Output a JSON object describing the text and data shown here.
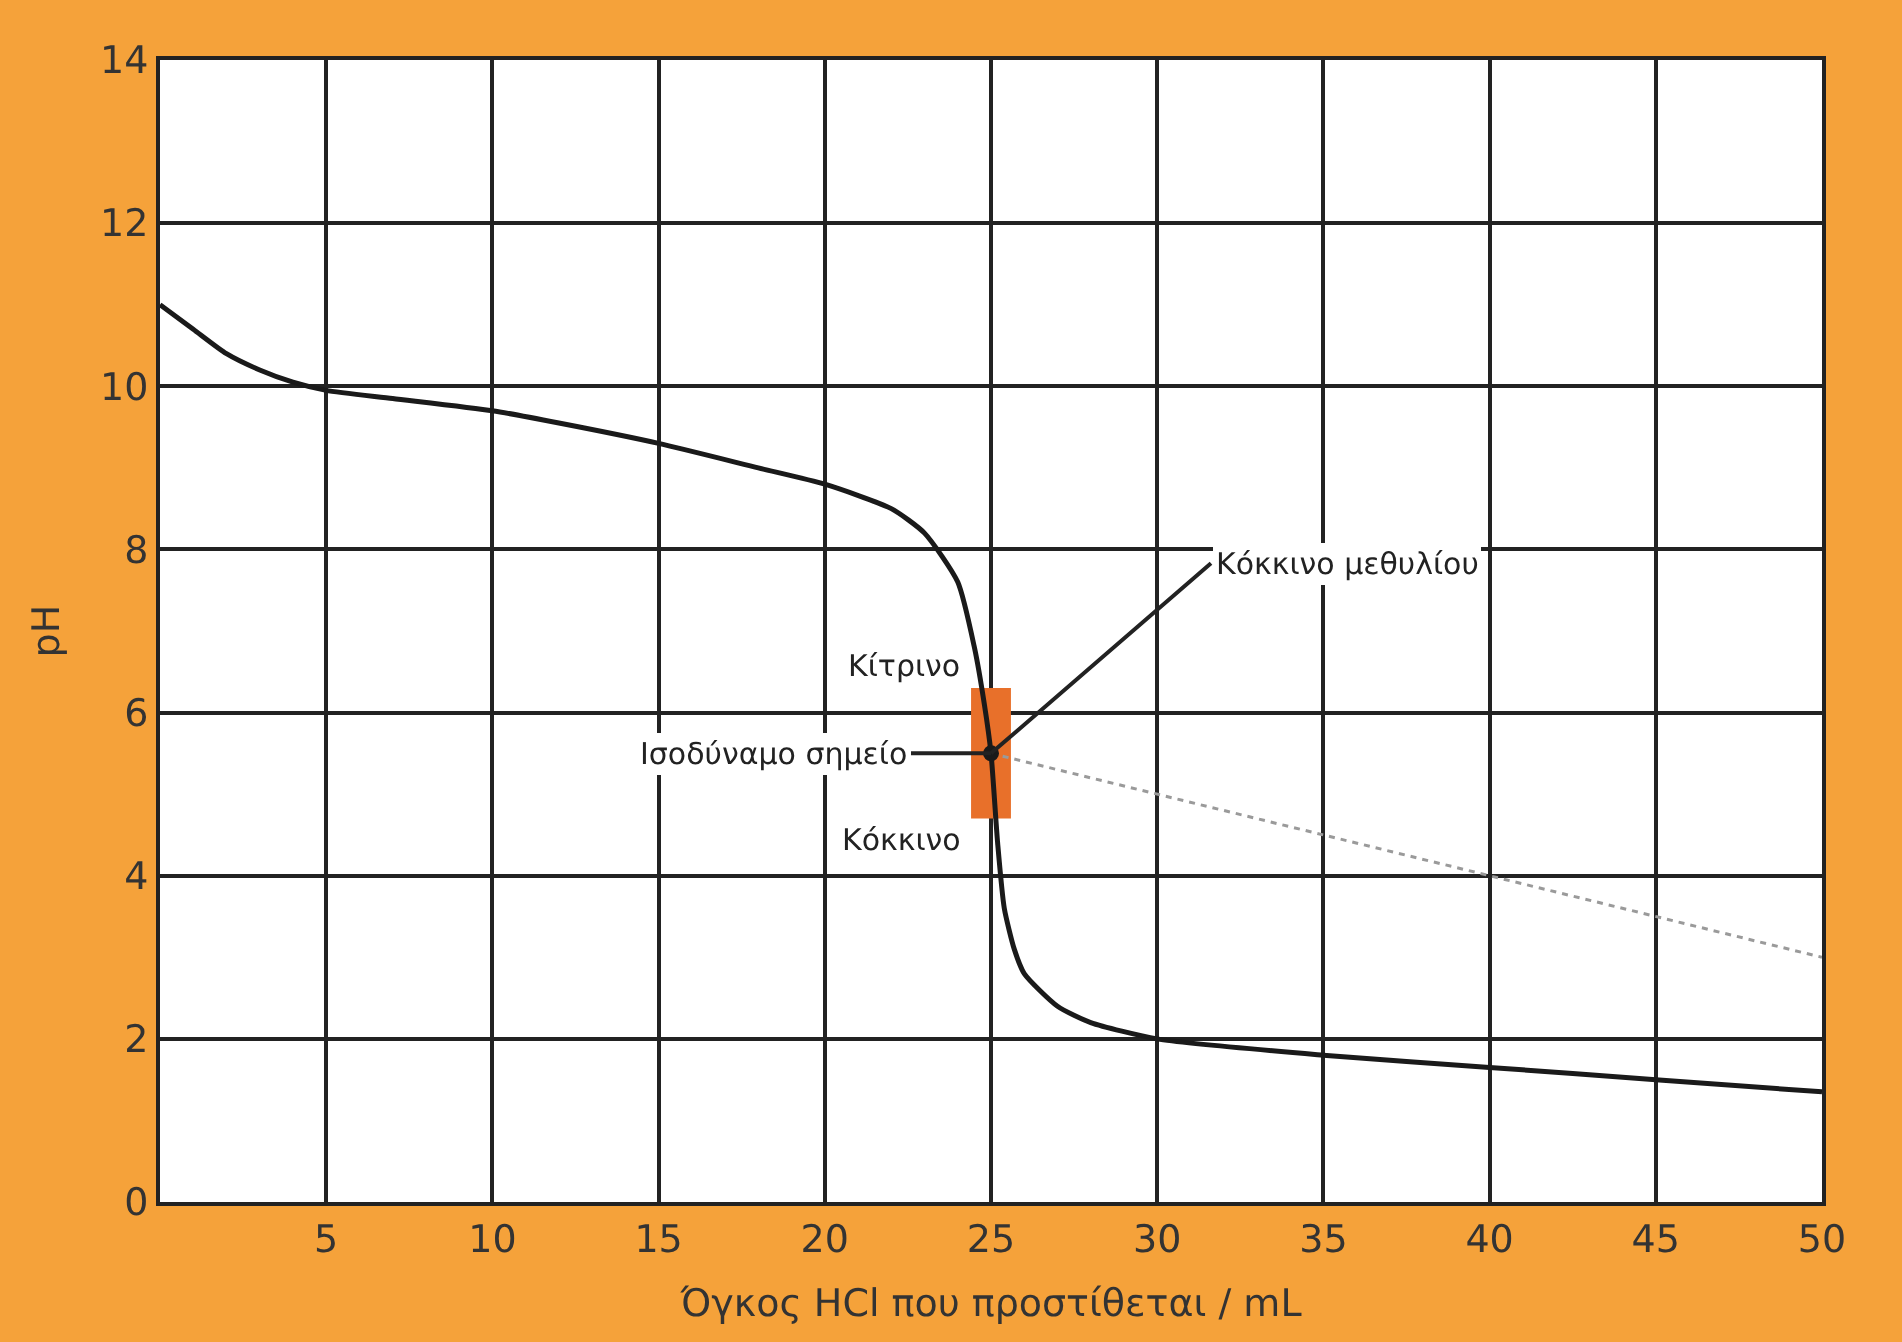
{
  "chart_data": {
    "type": "line",
    "xlabel": "Όγκος HCl που προστίθεται / mL",
    "ylabel": "pH",
    "xlim": [
      0,
      50
    ],
    "xticks": [
      5,
      10,
      15,
      20,
      25,
      30,
      35,
      40,
      45,
      50
    ],
    "ylim": [
      0,
      14
    ],
    "yticks": [
      0,
      2,
      4,
      6,
      8,
      10,
      12,
      14
    ],
    "grid": true,
    "series": [
      {
        "type": "bar",
        "color": "#e8702a",
        "x": [
          25
        ],
        "base": [
          4.7
        ],
        "values": [
          1.6
        ]
      },
      {
        "type": "line",
        "color": "#1a1a1a",
        "marker": "none",
        "line_style": "solid",
        "x": [
          0,
          1,
          2,
          3,
          4,
          5,
          7,
          10,
          12,
          15,
          18,
          20,
          22,
          23,
          24,
          24.5,
          24.8,
          25,
          25.2,
          25.4,
          25.7,
          26,
          27,
          28,
          30,
          35,
          40,
          45,
          50
        ],
        "values": [
          11.0,
          10.7,
          10.4,
          10.2,
          10.05,
          9.95,
          9.85,
          9.7,
          9.55,
          9.3,
          9.0,
          8.8,
          8.5,
          8.2,
          7.6,
          6.8,
          6.1,
          5.5,
          4.4,
          3.6,
          3.1,
          2.8,
          2.4,
          2.2,
          2.0,
          1.8,
          1.65,
          1.5,
          1.35
        ]
      },
      {
        "type": "line",
        "color": "#9a9a9a",
        "marker": "none",
        "line_style": "dotted",
        "x": [
          25,
          50
        ],
        "values": [
          5.5,
          3.0
        ]
      },
      {
        "type": "scatter",
        "color": "#1a1a1a",
        "marker": "circle",
        "x": [
          25
        ],
        "values": [
          5.5
        ]
      }
    ],
    "annotations": [
      "Κίτρινο",
      {
        "text": "Ισοδύναμο σημείο",
        "x": 25,
        "y": 5.5
      },
      "Κόκκινο",
      {
        "text": "Κόκκινο μεθυλίου",
        "x": 25,
        "y": 5.5
      }
    ]
  }
}
